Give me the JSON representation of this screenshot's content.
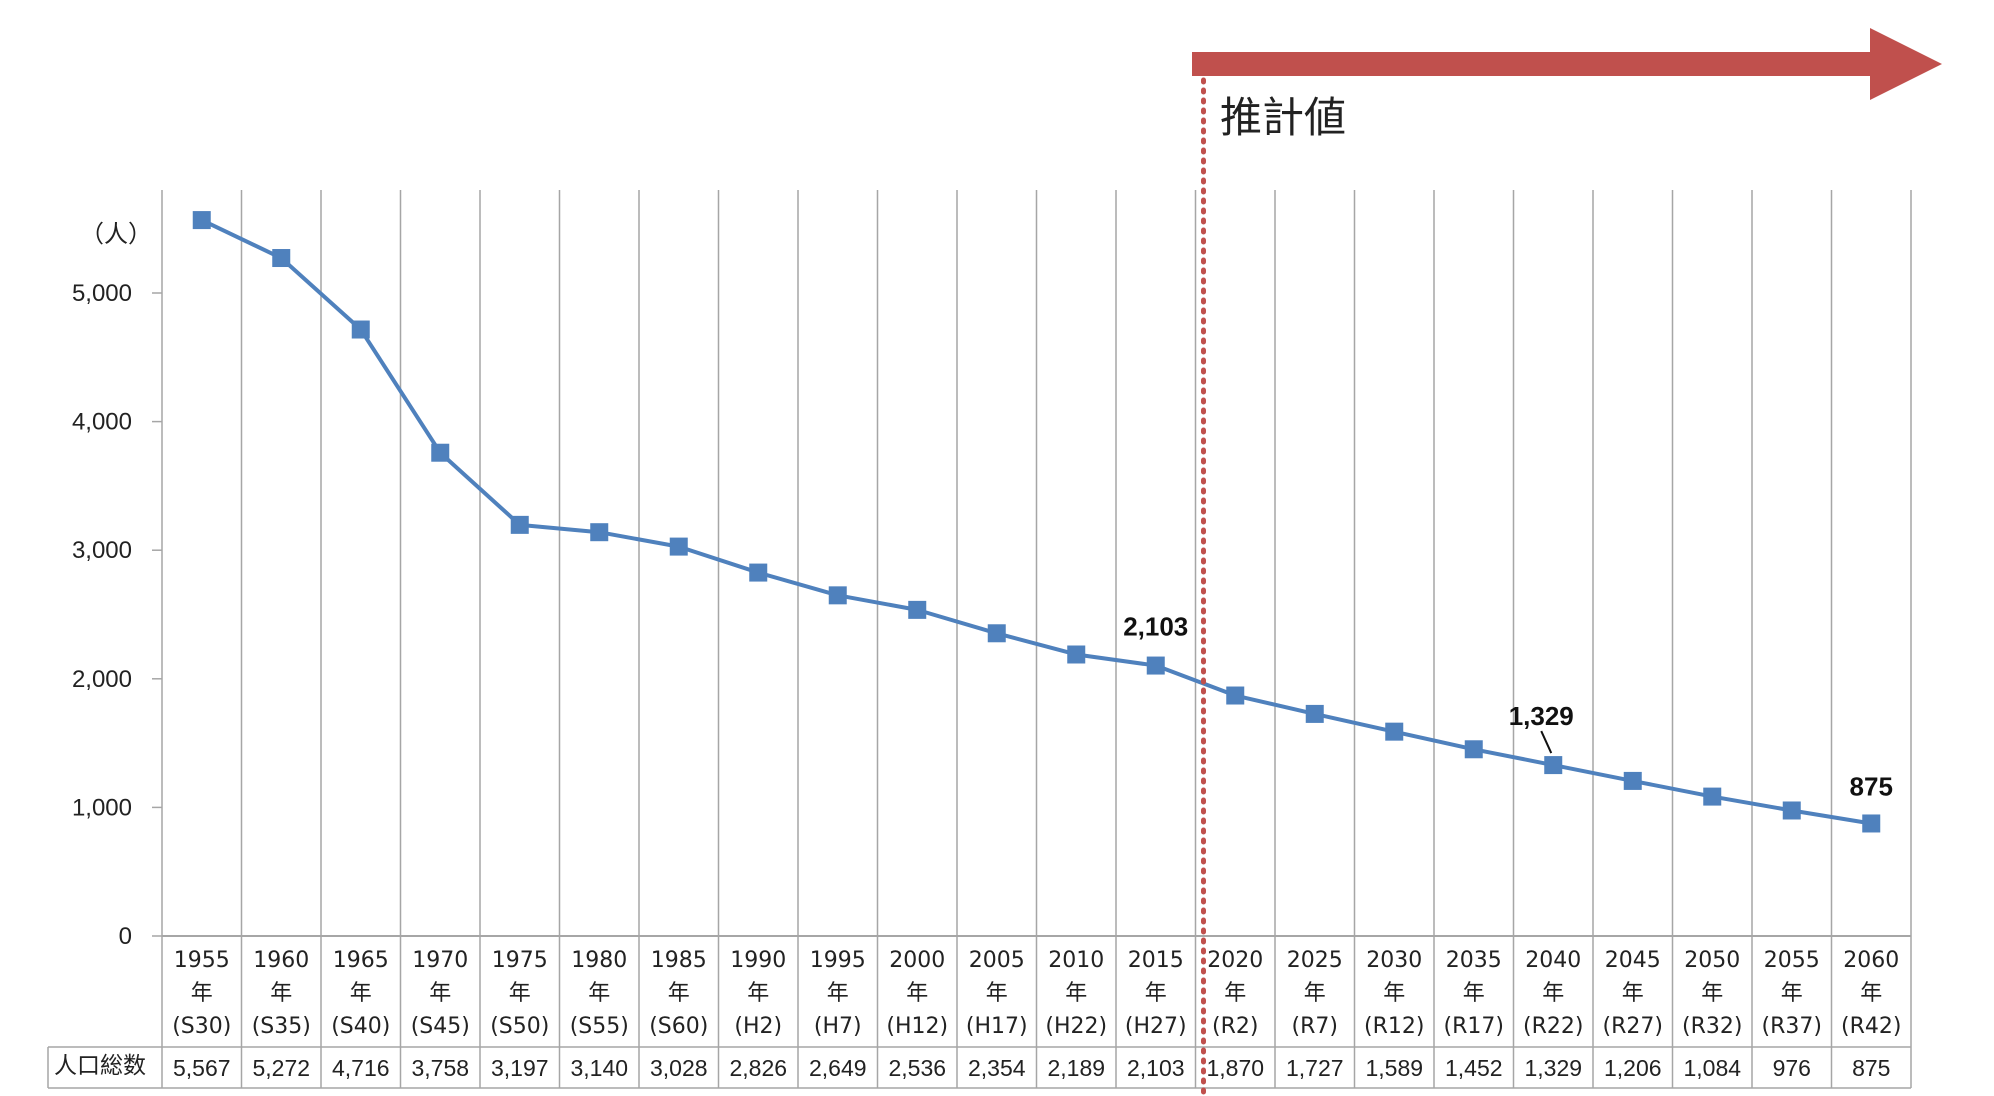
{
  "chart_data": {
    "type": "line",
    "unit_label": "（人）",
    "y_ticks": [
      0,
      1000,
      2000,
      3000,
      4000,
      5000
    ],
    "y_tick_labels": [
      "0",
      "1,000",
      "2,000",
      "3,000",
      "4,000",
      "5,000"
    ],
    "ylim": [
      0,
      5800
    ],
    "categories": [
      {
        "year": "1955",
        "suffix": "年",
        "era": "(S30)"
      },
      {
        "year": "1960",
        "suffix": "年",
        "era": "(S35)"
      },
      {
        "year": "1965",
        "suffix": "年",
        "era": "(S40)"
      },
      {
        "year": "1970",
        "suffix": "年",
        "era": "(S45)"
      },
      {
        "year": "1975",
        "suffix": "年",
        "era": "(S50)"
      },
      {
        "year": "1980",
        "suffix": "年",
        "era": "(S55)"
      },
      {
        "year": "1985",
        "suffix": "年",
        "era": "(S60)"
      },
      {
        "year": "1990",
        "suffix": "年",
        "era": "(H2)"
      },
      {
        "year": "1995",
        "suffix": "年",
        "era": "(H7)"
      },
      {
        "year": "2000",
        "suffix": "年",
        "era": "(H12)"
      },
      {
        "year": "2005",
        "suffix": "年",
        "era": "(H17)"
      },
      {
        "year": "2010",
        "suffix": "年",
        "era": "(H22)"
      },
      {
        "year": "2015",
        "suffix": "年",
        "era": "(H27)"
      },
      {
        "year": "2020",
        "suffix": "年",
        "era": "(R2)"
      },
      {
        "year": "2025",
        "suffix": "年",
        "era": "(R7)"
      },
      {
        "year": "2030",
        "suffix": "年",
        "era": "(R12)"
      },
      {
        "year": "2035",
        "suffix": "年",
        "era": "(R17)"
      },
      {
        "year": "2040",
        "suffix": "年",
        "era": "(R22)"
      },
      {
        "year": "2045",
        "suffix": "年",
        "era": "(R27)"
      },
      {
        "year": "2050",
        "suffix": "年",
        "era": "(R32)"
      },
      {
        "year": "2055",
        "suffix": "年",
        "era": "(R37)"
      },
      {
        "year": "2060",
        "suffix": "年",
        "era": "(R42)"
      }
    ],
    "series": [
      {
        "name": "人口総数",
        "values": [
          5567,
          5272,
          4716,
          3758,
          3197,
          3140,
          3028,
          2826,
          2649,
          2536,
          2354,
          2189,
          2103,
          1870,
          1727,
          1589,
          1452,
          1329,
          1206,
          1084,
          976,
          875
        ],
        "value_labels": [
          "5,567",
          "5,272",
          "4,716",
          "3,758",
          "3,197",
          "3,140",
          "3,028",
          "2,826",
          "2,649",
          "2,536",
          "2,354",
          "2,189",
          "2,103",
          "1,870",
          "1,727",
          "1,589",
          "1,452",
          "1,329",
          "1,206",
          "1,084",
          "976",
          "875"
        ],
        "color": "#4f81bd"
      }
    ],
    "annotations": [
      {
        "index": 12,
        "text": "2,103"
      },
      {
        "index": 17,
        "text": "1,329"
      },
      {
        "index": 21,
        "text": "875"
      }
    ],
    "projection": {
      "label": "推計値",
      "start_index": 13,
      "arrow_color": "#c0504d",
      "line_color": "#c0504d"
    },
    "table_row_label": "人口総数",
    "grid_color": "#a6a6a6"
  }
}
